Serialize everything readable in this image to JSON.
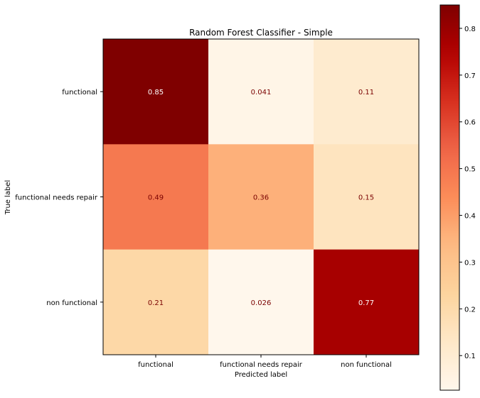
{
  "chart_data": {
    "type": "heatmap",
    "title": "Random Forest Classifier - Simple",
    "xlabel": "Predicted label",
    "ylabel": "True label",
    "x_categories": [
      "functional",
      "functional needs repair",
      "non functional"
    ],
    "y_categories": [
      "functional",
      "functional needs repair",
      "non functional"
    ],
    "values": [
      [
        0.85,
        0.041,
        0.11
      ],
      [
        0.49,
        0.36,
        0.15
      ],
      [
        0.21,
        0.026,
        0.77
      ]
    ],
    "cell_labels": [
      [
        "0.85",
        "0.041",
        "0.11"
      ],
      [
        "0.49",
        "0.36",
        "0.15"
      ],
      [
        "0.21",
        "0.026",
        "0.77"
      ]
    ],
    "colormap": "OrRd",
    "color_range": [
      0.026,
      0.85
    ],
    "colorbar_ticks": [
      0.1,
      0.2,
      0.3,
      0.4,
      0.5,
      0.6,
      0.7,
      0.8
    ],
    "colorbar_tick_labels": [
      "0.1",
      "0.2",
      "0.3",
      "0.4",
      "0.5",
      "0.6",
      "0.7",
      "0.8"
    ],
    "grid": false,
    "label_colors": {
      "default": "#7a0000",
      "dark_cell": "#ffffff"
    }
  }
}
